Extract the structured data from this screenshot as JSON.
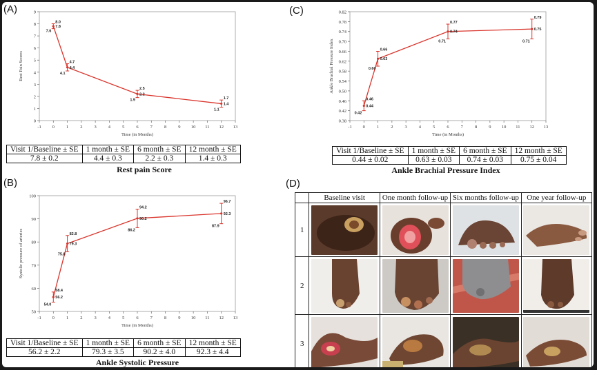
{
  "panels": [
    {
      "label": "(A)",
      "caption": "Rest pain Score",
      "table": {
        "headers": [
          "Visit 1/Baseline ± SE",
          "1 month ± SE",
          "6 month ± SE",
          "12 month ± SE"
        ],
        "values": [
          "7.8 ± 0.2",
          "4.4 ± 0.3",
          "2.2 ± 0.3",
          "1.4 ± 0.3"
        ]
      }
    },
    {
      "label": "(C)",
      "caption": "Ankle Brachial Pressure Index",
      "table": {
        "headers": [
          "Visit 1/Baseline ± SE",
          "1 month ± SE",
          "6 month ± SE",
          "12 month ± SE"
        ],
        "values": [
          "0.44 ± 0.02",
          "0.63 ± 0.03",
          "0.74 ± 0.03",
          "0.75 ± 0.04"
        ]
      }
    },
    {
      "label": "(B)",
      "caption": "Ankle Systolic Pressure",
      "table": {
        "headers": [
          "Visit 1/Baseline ± SE",
          "1 month ± SE",
          "6 month ± SE",
          "12 month ± SE"
        ],
        "values": [
          "56.2 ± 2.2",
          "79.3 ± 3.5",
          "90.2 ± 4.0",
          "92.3 ± 4.4"
        ]
      }
    },
    {
      "label": "(D)"
    }
  ],
  "chart_data": [
    {
      "type": "line",
      "ylabel": "Rest Pain Scores",
      "xlabel": "Time (in Months)",
      "xlim": [
        -1,
        13
      ],
      "ylim": [
        0,
        9
      ],
      "xticks": [
        -1,
        0,
        1,
        2,
        3,
        4,
        5,
        6,
        7,
        8,
        9,
        10,
        11,
        12,
        13
      ],
      "yticks": [
        0,
        1,
        2,
        3,
        4,
        5,
        6,
        7,
        8,
        9
      ],
      "x": [
        0,
        1,
        6,
        12
      ],
      "y": [
        7.8,
        4.4,
        2.2,
        1.4
      ],
      "err": [
        0.2,
        0.3,
        0.3,
        0.3
      ],
      "decimals": 1,
      "color": "#d9342b"
    },
    {
      "type": "line",
      "ylabel": "Ankle Brachial Pressure Index",
      "xlabel": "Time (in Months)",
      "xlim": [
        -1,
        13
      ],
      "ylim": [
        0.38,
        0.82
      ],
      "xticks": [
        -1,
        0,
        1,
        2,
        3,
        4,
        5,
        6,
        7,
        8,
        9,
        10,
        11,
        12,
        13
      ],
      "yticks": [
        0.38,
        0.42,
        0.46,
        0.5,
        0.54,
        0.58,
        0.62,
        0.66,
        0.7,
        0.74,
        0.78,
        0.82
      ],
      "x": [
        0,
        1,
        6,
        12
      ],
      "y": [
        0.44,
        0.63,
        0.74,
        0.75
      ],
      "err": [
        0.02,
        0.03,
        0.03,
        0.04
      ],
      "decimals": 2,
      "color": "#d9342b"
    },
    {
      "type": "line",
      "ylabel": "Systolic pressure of arteries",
      "xlabel": "Time (in Months)",
      "xlim": [
        -1,
        13
      ],
      "ylim": [
        50,
        100
      ],
      "xticks": [
        -1,
        0,
        1,
        2,
        3,
        4,
        5,
        6,
        7,
        8,
        9,
        10,
        11,
        12,
        13
      ],
      "yticks": [
        50,
        60,
        70,
        80,
        90,
        100
      ],
      "x": [
        0,
        1,
        6,
        12
      ],
      "y": [
        56.2,
        79.3,
        90.2,
        92.3
      ],
      "err": [
        2.2,
        3.5,
        4.0,
        4.4
      ],
      "decimals": 1,
      "color": "#d9342b"
    }
  ],
  "photo_grid": {
    "columns": [
      "Baseline visit",
      "One month follow-up",
      "Six months follow-up",
      "One year follow-up"
    ],
    "rows": [
      "1",
      "2",
      "3"
    ]
  }
}
